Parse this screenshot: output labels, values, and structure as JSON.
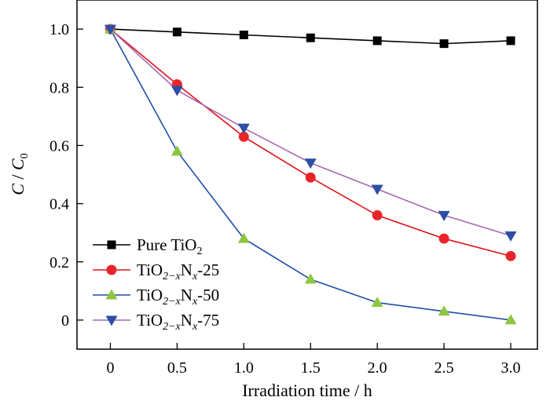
{
  "chart_data": {
    "type": "line",
    "xlabel": "Irradiation time / h",
    "ylabel": {
      "main": "C",
      "sep": " / ",
      "sub_main": "C",
      "sub": "0"
    },
    "xlim": [
      -0.25,
      3.2
    ],
    "ylim": [
      -0.1,
      1.1
    ],
    "xticks": [
      0,
      0.5,
      1.0,
      1.5,
      2.0,
      2.5,
      3.0
    ],
    "xtick_labels": [
      "0",
      "0.5",
      "1.0",
      "1.5",
      "2.0",
      "2.5",
      "3.0"
    ],
    "yticks": [
      0,
      0.2,
      0.4,
      0.6,
      0.8,
      1.0
    ],
    "ytick_labels": [
      "0",
      "0.2",
      "0.4",
      "0.6",
      "0.8",
      "1.0"
    ],
    "grid": false,
    "legend_position": "lower-left",
    "x": [
      0,
      0.5,
      1.0,
      1.5,
      2.0,
      2.5,
      3.0
    ],
    "series": [
      {
        "name": "Pure TiO2",
        "label_parts": [
          {
            "t": "Pure TiO",
            "s": "n"
          },
          {
            "t": "2",
            "s": "sub"
          }
        ],
        "values": [
          1.0,
          0.99,
          0.98,
          0.97,
          0.96,
          0.95,
          0.96
        ],
        "line_color": "#000000",
        "marker_color": "#000000",
        "marker": "square"
      },
      {
        "name": "TiO2−xNx-25",
        "label_parts": [
          {
            "t": "TiO",
            "s": "n"
          },
          {
            "t": "2−x",
            "s": "sub"
          },
          {
            "t": "N",
            "s": "n"
          },
          {
            "t": "x",
            "s": "subi"
          },
          {
            "t": "-25",
            "s": "n"
          }
        ],
        "values": [
          1.0,
          0.81,
          0.63,
          0.49,
          0.36,
          0.28,
          0.22
        ],
        "line_color": "#e0141b",
        "marker_color": "#e8262a",
        "marker": "circle"
      },
      {
        "name": "TiO2−xNx-50",
        "label_parts": [
          {
            "t": "TiO",
            "s": "n"
          },
          {
            "t": "2−x",
            "s": "sub"
          },
          {
            "t": "N",
            "s": "n"
          },
          {
            "t": "x",
            "s": "subi"
          },
          {
            "t": "-50",
            "s": "n"
          }
        ],
        "values": [
          1.0,
          0.58,
          0.28,
          0.14,
          0.06,
          0.03,
          0.0
        ],
        "line_color": "#1f4ea6",
        "marker_color": "#8dc63f",
        "marker": "triangle-up"
      },
      {
        "name": "TiO2−xNx-75",
        "label_parts": [
          {
            "t": "TiO",
            "s": "n"
          },
          {
            "t": "2−x",
            "s": "sub"
          },
          {
            "t": "N",
            "s": "n"
          },
          {
            "t": "x",
            "s": "subi"
          },
          {
            "t": "-75",
            "s": "n"
          }
        ],
        "values": [
          1.0,
          0.79,
          0.66,
          0.54,
          0.45,
          0.36,
          0.29
        ],
        "line_color": "#a867b3",
        "marker_color": "#2c4fa3",
        "marker": "triangle-down"
      }
    ]
  }
}
